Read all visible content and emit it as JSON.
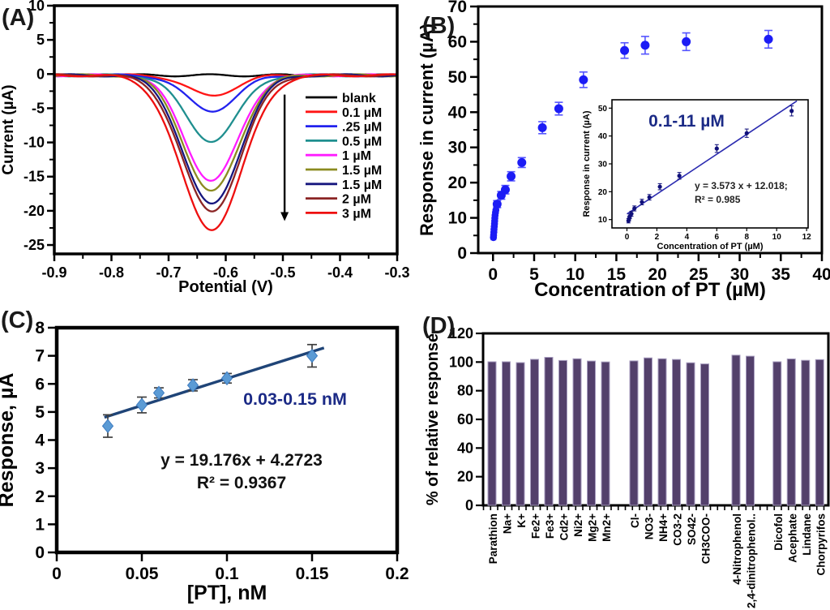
{
  "panels": {
    "a": {
      "label": "(A)"
    },
    "b": {
      "label": "(B)"
    },
    "c": {
      "label": "(C)"
    },
    "d": {
      "label": "(D)"
    }
  },
  "chart_data": [
    {
      "id": "A",
      "type": "line",
      "xlabel": "Potential (V)",
      "ylabel": "Current (µA)",
      "xlim": [
        -0.9,
        -0.3
      ],
      "ylim": [
        -26.3,
        10
      ],
      "xticks": [
        "-0.9",
        "-0.8",
        "-0.7",
        "-0.6",
        "-0.5",
        "-0.4",
        "-0.3"
      ],
      "yticks": [
        "10",
        "5",
        "0",
        "-5",
        "-10",
        "-15",
        "-20",
        "-25"
      ],
      "peak_potential": -0.625,
      "series": [
        {
          "name": "blank",
          "color": "#000000",
          "peak_current": -0.3,
          "sigma": 0.05
        },
        {
          "name": "0.1 µM",
          "color": "#ff1414",
          "peak_current": -3.3,
          "sigma": 0.041
        },
        {
          "name": ".25 µM",
          "color": "#2222ee",
          "peak_current": -5.5,
          "sigma": 0.043
        },
        {
          "name": "0.5 µM",
          "color": "#1f8f8f",
          "peak_current": -9.9,
          "sigma": 0.045
        },
        {
          "name": "1 µM",
          "color": "#ff1cff",
          "peak_current": -15.7,
          "sigma": 0.047
        },
        {
          "name": "1.5 µM",
          "color": "#8b8b20",
          "peak_current": -17.3,
          "sigma": 0.048
        },
        {
          "name": "1.5 µM",
          "color": "#16167e",
          "peak_current": -19.2,
          "sigma": 0.049
        },
        {
          "name": "2 µM",
          "color": "#8b2525",
          "peak_current": -20.2,
          "sigma": 0.051
        },
        {
          "name": "3 µM",
          "color": "#ee0f0f",
          "peak_current": -22.8,
          "sigma": 0.054
        }
      ],
      "arrow": {
        "x": -0.497,
        "y_from": -3.0,
        "y_to": -21.5,
        "direction": "down"
      },
      "legend_position": "right-inside"
    },
    {
      "id": "B",
      "type": "scatter",
      "xlabel": "Concentration of PT (µM)",
      "ylabel": "Response in current (µA)",
      "xlim": [
        0,
        40
      ],
      "ylim": [
        0,
        70
      ],
      "xticks": [
        "0",
        "5",
        "10",
        "15",
        "20",
        "25",
        "30",
        "35",
        "40"
      ],
      "yticks": [
        "0",
        "10",
        "20",
        "30",
        "40",
        "50",
        "60",
        "70"
      ],
      "marker_color": "#1c1cf5",
      "errorbar_color": "#5555ff",
      "points": [
        [
          0.05,
          4.4,
          0.6
        ],
        [
          0.07,
          5.1,
          0.6
        ],
        [
          0.1,
          5.9,
          0.7
        ],
        [
          0.12,
          6.7,
          0.7
        ],
        [
          0.15,
          7.5,
          0.7
        ],
        [
          0.18,
          8.3,
          0.8
        ],
        [
          0.2,
          9.1,
          0.8
        ],
        [
          0.22,
          9.9,
          0.8
        ],
        [
          0.25,
          10.7,
          0.9
        ],
        [
          0.3,
          11.5,
          0.9
        ],
        [
          0.35,
          12.2,
          0.9
        ],
        [
          0.5,
          13.9,
          1.0
        ],
        [
          1,
          16.4,
          1.1
        ],
        [
          1.5,
          18.0,
          1.2
        ],
        [
          2.2,
          21.8,
          1.3
        ],
        [
          3.5,
          25.7,
          1.4
        ],
        [
          6,
          35.6,
          1.7
        ],
        [
          8,
          41.0,
          1.8
        ],
        [
          11,
          49.2,
          2.2
        ],
        [
          16,
          57.5,
          2.2
        ],
        [
          18.5,
          59.0,
          2.5
        ],
        [
          23.5,
          60.0,
          2.5
        ],
        [
          33.5,
          60.7,
          2.5
        ]
      ],
      "inset": {
        "annotation": "0.1-11 µM",
        "annotation_color": "#1b2a86",
        "equation": "y = 3.573 x + 12.018;",
        "r_squared": "R² = 0.985",
        "xlabel": "Concentration of PT (µM)",
        "ylabel": "Response in current (µA)",
        "xlim": [
          0,
          12
        ],
        "ylim": [
          7,
          53
        ],
        "xticks": [
          "0",
          "2",
          "4",
          "6",
          "8",
          "10",
          "12"
        ],
        "yticks": [
          "10",
          "20",
          "30",
          "40",
          "50"
        ],
        "fit": {
          "slope": 3.573,
          "intercept": 12.018,
          "x_from": 0,
          "x_to": 11.35
        },
        "marker_color": "#10107a",
        "line_color": "#2b2bb0",
        "points": [
          [
            0.1,
            9.6,
            0.8
          ],
          [
            0.15,
            10.4,
            0.8
          ],
          [
            0.2,
            11.2,
            0.8
          ],
          [
            0.3,
            12.1,
            0.9
          ],
          [
            0.5,
            14.0,
            0.9
          ],
          [
            1,
            16.3,
            1.0
          ],
          [
            1.5,
            18.0,
            1.0
          ],
          [
            2.2,
            21.8,
            1.1
          ],
          [
            3.5,
            25.7,
            1.2
          ],
          [
            6,
            35.5,
            1.4
          ],
          [
            8,
            41.0,
            1.5
          ],
          [
            11,
            49.0,
            1.8
          ]
        ]
      }
    },
    {
      "id": "C",
      "type": "scatter",
      "xlabel": "[PT], nM",
      "ylabel": "Response, µA",
      "xlim": [
        0,
        0.2
      ],
      "ylim": [
        0,
        8
      ],
      "xticks": [
        "0",
        "0.05",
        "0.1",
        "0.15",
        "0.2"
      ],
      "yticks": [
        "0",
        "1",
        "2",
        "3",
        "4",
        "5",
        "6",
        "7",
        "8"
      ],
      "annotation": "0.03-0.15 nM",
      "annotation_color": "#1b2a86",
      "equation": "y = 19.176x + 4.2723",
      "r_squared": "R² = 0.9367",
      "fit": {
        "slope": 19.176,
        "intercept": 4.2723,
        "x_from": 0.028,
        "x_to": 0.157
      },
      "marker_color": "#5b9bd5",
      "line_color": "#1f4477",
      "errorbar_color": "#404040",
      "points": [
        [
          0.03,
          4.5,
          0.4
        ],
        [
          0.05,
          5.25,
          0.28
        ],
        [
          0.06,
          5.68,
          0.18
        ],
        [
          0.08,
          5.95,
          0.2
        ],
        [
          0.1,
          6.2,
          0.17
        ],
        [
          0.15,
          7.0,
          0.4
        ]
      ]
    },
    {
      "id": "D",
      "type": "bar",
      "ylabel": "% of relative response",
      "ylim": [
        0,
        120
      ],
      "yticks": [
        "0",
        "20",
        "40",
        "60",
        "80",
        "100",
        "120"
      ],
      "bar_color": "#53406b",
      "bar_edge_color": "#a89ec0",
      "bars": [
        {
          "label": "Parathion",
          "value": 100.2,
          "slot": 0
        },
        {
          "label": "Na+",
          "value": 100.2,
          "slot": 1
        },
        {
          "label": "K+",
          "value": 99.6,
          "slot": 2
        },
        {
          "label": "Fe2+",
          "value": 101.9,
          "slot": 3
        },
        {
          "label": "Fe3+",
          "value": 103.3,
          "slot": 4
        },
        {
          "label": "Cd2+",
          "value": 101.1,
          "slot": 5
        },
        {
          "label": "Ni2+",
          "value": 102.3,
          "slot": 6
        },
        {
          "label": "Mg2+",
          "value": 100.7,
          "slot": 7
        },
        {
          "label": "Mn2+",
          "value": 100.1,
          "slot": 8
        },
        {
          "label": "Cl-",
          "value": 100.8,
          "slot": 10
        },
        {
          "label": "NO3-",
          "value": 102.9,
          "slot": 11
        },
        {
          "label": "NH4+",
          "value": 102.3,
          "slot": 12
        },
        {
          "label": "CO3-2",
          "value": 101.8,
          "slot": 13
        },
        {
          "label": "SO42-",
          "value": 99.5,
          "slot": 14
        },
        {
          "label": "CH3COO-",
          "value": 98.7,
          "slot": 15
        },
        {
          "label": "4-Nitrophenol",
          "value": 104.8,
          "slot": 17.2
        },
        {
          "label": "2,4-dinitrophenol..",
          "value": 104.1,
          "slot": 18.2
        },
        {
          "label": "Dicofol",
          "value": 100.2,
          "slot": 20.1
        },
        {
          "label": "Acephate",
          "value": 102.2,
          "slot": 21.1
        },
        {
          "label": "Lindane",
          "value": 101.2,
          "slot": 22.1
        },
        {
          "label": "Chorpyrifos",
          "value": 101.7,
          "slot": 23.1
        }
      ]
    }
  ]
}
